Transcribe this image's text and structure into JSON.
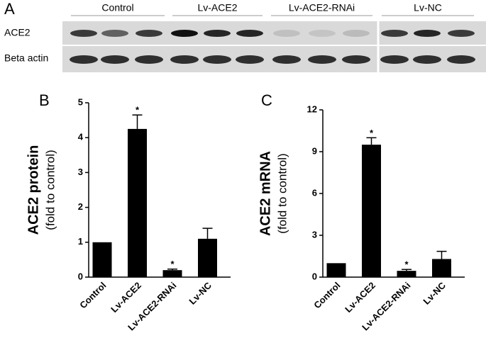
{
  "panel_a": {
    "label": "A",
    "groups": [
      "Control",
      "Lv-ACE2",
      "Lv-ACE2-RNAi",
      "Lv-NC"
    ],
    "rows": [
      "ACE2",
      "Beta actin"
    ]
  },
  "chart_data": [
    {
      "type": "bar",
      "panel_label": "B",
      "ylabel": "ACE2 protein",
      "ylabel_sub": "(fold to control)",
      "categories": [
        "Control",
        "Lv-ACE2",
        "Lv-ACE2-RNAi",
        "Lv-NC"
      ],
      "values": [
        1,
        4.25,
        0.2,
        1.1
      ],
      "errors": [
        0,
        0.4,
        0.03,
        0.3
      ],
      "color": "#000000",
      "ylim": [
        0,
        5
      ],
      "yticks": [
        0,
        1,
        2,
        3,
        4,
        5
      ],
      "annotations": [
        {
          "index": 1,
          "text": "*"
        },
        {
          "index": 2,
          "text": "*"
        }
      ]
    },
    {
      "type": "bar",
      "panel_label": "C",
      "ylabel": "ACE2 mRNA",
      "ylabel_sub": "(fold to control)",
      "categories": [
        "Control",
        "Lv-ACE2",
        "Lv-ACE2-RNAi",
        "Lv-NC"
      ],
      "values": [
        1,
        9.5,
        0.45,
        1.3
      ],
      "errors": [
        0,
        0.5,
        0.1,
        0.55
      ],
      "color": "#000000",
      "ylim": [
        0,
        12
      ],
      "yticks": [
        0,
        3,
        6,
        9,
        12
      ],
      "annotations": [
        {
          "index": 1,
          "text": "*"
        },
        {
          "index": 2,
          "text": "*"
        }
      ]
    }
  ]
}
